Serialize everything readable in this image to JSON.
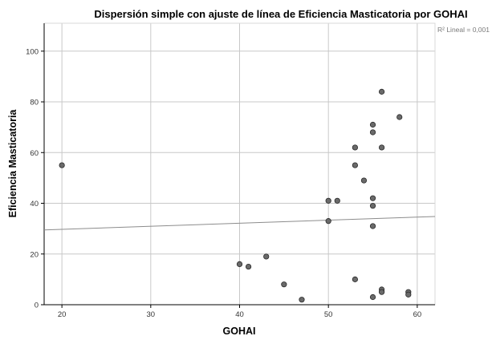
{
  "chart_data": {
    "type": "scatter",
    "title": "Dispersión simple con ajuste de línea de Eficiencia Masticatoria por GOHAI",
    "xlabel": "GOHAI",
    "ylabel": "Eficiencia Masticatoria",
    "annotation": "R² Lineal = 0,001",
    "xlim": [
      18,
      62
    ],
    "ylim": [
      0,
      111
    ],
    "xticks": [
      20,
      30,
      40,
      50,
      60
    ],
    "yticks": [
      0,
      20,
      40,
      60,
      80,
      100
    ],
    "grid": true,
    "point_color": "#6a6a6a",
    "point_edge_color": "#2a2a2a",
    "fit_line_color": "#8c8c8c",
    "fit_line": {
      "x": [
        18,
        62
      ],
      "y": [
        29.5,
        34.8
      ]
    },
    "points": [
      {
        "x": 20,
        "y": 55
      },
      {
        "x": 40,
        "y": 16
      },
      {
        "x": 41,
        "y": 15
      },
      {
        "x": 43,
        "y": 19
      },
      {
        "x": 45,
        "y": 8
      },
      {
        "x": 47,
        "y": 2
      },
      {
        "x": 50,
        "y": 41
      },
      {
        "x": 50,
        "y": 33
      },
      {
        "x": 51,
        "y": 41
      },
      {
        "x": 53,
        "y": 62
      },
      {
        "x": 53,
        "y": 55
      },
      {
        "x": 53,
        "y": 10
      },
      {
        "x": 54,
        "y": 49
      },
      {
        "x": 55,
        "y": 71
      },
      {
        "x": 55,
        "y": 68
      },
      {
        "x": 55,
        "y": 42
      },
      {
        "x": 55,
        "y": 39
      },
      {
        "x": 55,
        "y": 31
      },
      {
        "x": 55,
        "y": 3
      },
      {
        "x": 56,
        "y": 84
      },
      {
        "x": 56,
        "y": 62
      },
      {
        "x": 56,
        "y": 6
      },
      {
        "x": 56,
        "y": 5
      },
      {
        "x": 58,
        "y": 74
      },
      {
        "x": 59,
        "y": 5
      },
      {
        "x": 59,
        "y": 4
      }
    ]
  }
}
